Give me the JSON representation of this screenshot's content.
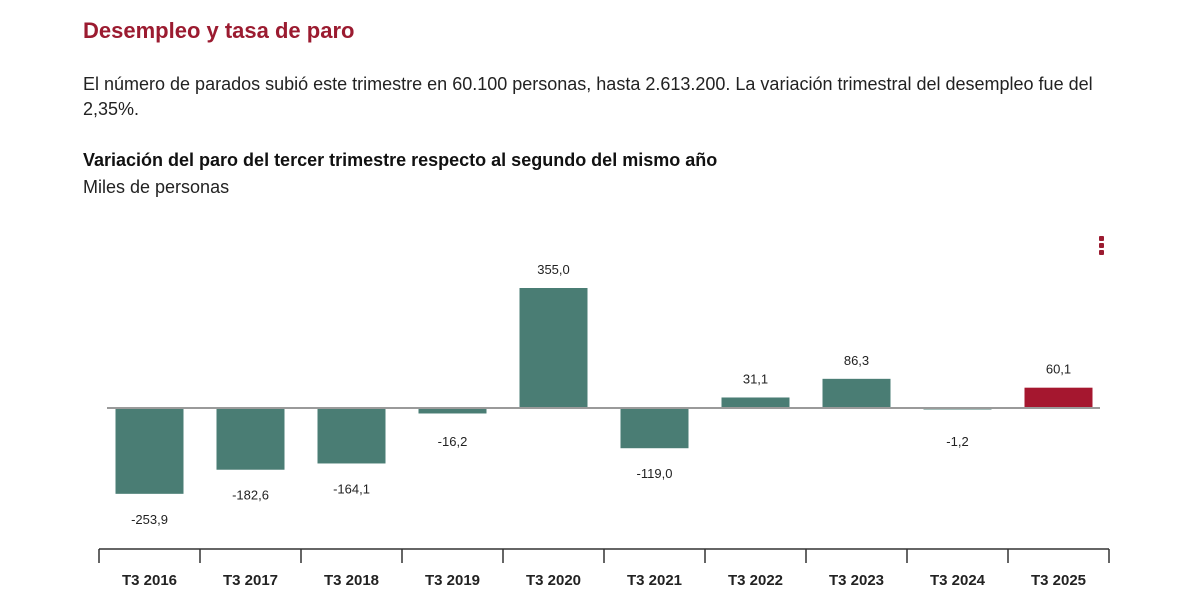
{
  "header": {
    "title": "Desempleo y tasa de paro",
    "description": "El número de parados subió este trimestre en 60.100 personas, hasta 2.613.200. La variación trimestral del desempleo fue del 2,35%."
  },
  "chart_menu_icon": "vertical-ellipsis-icon",
  "chart_data": {
    "type": "bar",
    "title": "Variación del paro del tercer trimestre respecto al segundo del mismo año",
    "subtitle": "Miles de personas",
    "categories": [
      "T3 2016",
      "T3 2017",
      "T3 2018",
      "T3 2019",
      "T3 2020",
      "T3 2021",
      "T3 2022",
      "T3 2023",
      "T3 2024",
      "T3 2025"
    ],
    "values": [
      -253.9,
      -182.6,
      -164.1,
      -16.2,
      355.0,
      -119.0,
      31.1,
      86.3,
      -1.2,
      60.1
    ],
    "data_labels": [
      "-253,9",
      "-182,6",
      "-164,1",
      "-16,2",
      "355,0",
      "-119,0",
      "31,1",
      "86,3",
      "-1,2",
      "60,1"
    ],
    "colors": {
      "default": "#4a7d74",
      "highlight": "#a5172f",
      "zero_line": "#9a9a9a",
      "axis": "#333333"
    },
    "highlight_category": "T3 2025",
    "grid": false,
    "legend": "none"
  }
}
